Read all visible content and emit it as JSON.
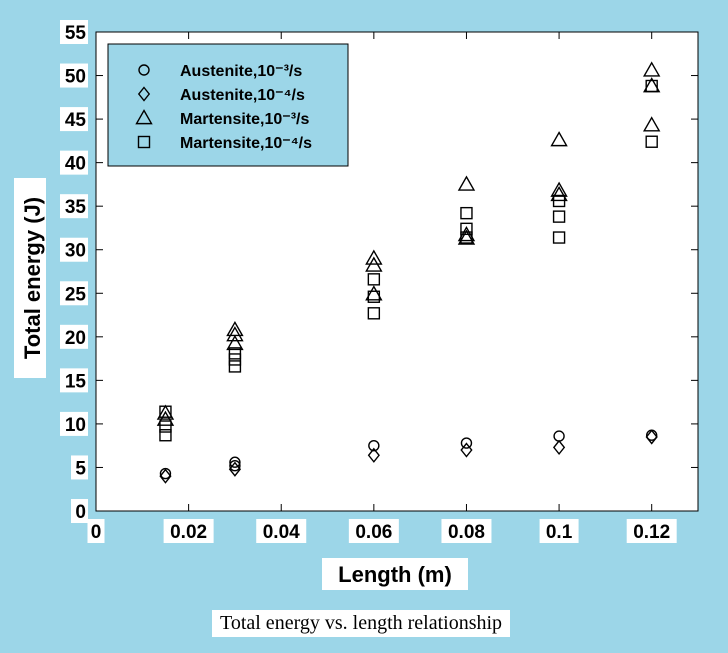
{
  "chart_data": {
    "type": "scatter",
    "xlabel": "Length (m)",
    "ylabel": "Total energy (J)",
    "xlim": [
      0,
      0.13
    ],
    "ylim": [
      0,
      55
    ],
    "xticks": [
      0,
      0.02,
      0.04,
      0.06,
      0.08,
      0.1,
      0.12
    ],
    "xtick_labels": [
      "0",
      "0.02",
      "0.04",
      "0.06",
      "0.08",
      "0.1",
      "0.12"
    ],
    "yticks": [
      0,
      5,
      10,
      15,
      20,
      25,
      30,
      35,
      40,
      45,
      50,
      55
    ],
    "ytick_labels": [
      "0",
      "5",
      "10",
      "15",
      "20",
      "25",
      "30",
      "35",
      "40",
      "45",
      "50",
      "55"
    ],
    "legend_position": "top-left",
    "series": [
      {
        "name": "Austenite,10⁻³/s",
        "marker": "circle",
        "points": [
          [
            0.015,
            4.3
          ],
          [
            0.03,
            5.2
          ],
          [
            0.03,
            5.6
          ],
          [
            0.06,
            7.5
          ],
          [
            0.08,
            7.8
          ],
          [
            0.1,
            8.6
          ],
          [
            0.12,
            8.7
          ]
        ]
      },
      {
        "name": "Austenite,10⁻⁴/s",
        "marker": "diamond",
        "points": [
          [
            0.015,
            4.0
          ],
          [
            0.03,
            4.8
          ],
          [
            0.06,
            6.4
          ],
          [
            0.08,
            7.0
          ],
          [
            0.1,
            7.3
          ],
          [
            0.12,
            8.5
          ]
        ]
      },
      {
        "name": "Martensite,10⁻³/s",
        "marker": "triangle",
        "points": [
          [
            0.015,
            11.2
          ],
          [
            0.015,
            10.5
          ],
          [
            0.03,
            20.8
          ],
          [
            0.03,
            20.2
          ],
          [
            0.03,
            19.2
          ],
          [
            0.06,
            29.0
          ],
          [
            0.06,
            28.2
          ],
          [
            0.06,
            24.9
          ],
          [
            0.08,
            37.5
          ],
          [
            0.08,
            31.7
          ],
          [
            0.08,
            31.3
          ],
          [
            0.1,
            42.6
          ],
          [
            0.1,
            36.8
          ],
          [
            0.1,
            36.3
          ],
          [
            0.12,
            50.6
          ],
          [
            0.12,
            48.8
          ],
          [
            0.12,
            44.3
          ]
        ]
      },
      {
        "name": "Martensite,10⁻⁴/s",
        "marker": "square",
        "points": [
          [
            0.015,
            11.4
          ],
          [
            0.015,
            9.7
          ],
          [
            0.015,
            8.7
          ],
          [
            0.03,
            18.1
          ],
          [
            0.03,
            17.4
          ],
          [
            0.03,
            16.6
          ],
          [
            0.06,
            26.6
          ],
          [
            0.06,
            24.6
          ],
          [
            0.06,
            22.7
          ],
          [
            0.08,
            34.2
          ],
          [
            0.08,
            32.4
          ],
          [
            0.08,
            31.4
          ],
          [
            0.1,
            35.6
          ],
          [
            0.1,
            33.8
          ],
          [
            0.1,
            31.4
          ],
          [
            0.12,
            48.8
          ],
          [
            0.12,
            42.4
          ]
        ]
      }
    ]
  },
  "caption": "Total energy vs. length relationship"
}
